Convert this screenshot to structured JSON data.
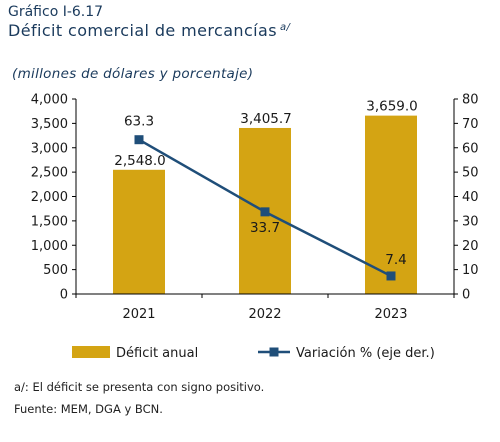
{
  "header": {
    "figure_label": "Gráfico I-6.17",
    "title": "Déficit comercial de mercancías",
    "title_note": "a/",
    "subtitle": "(millones de dólares y porcentaje)"
  },
  "colors": {
    "bar": "#D4A413",
    "line": "#1F4E79",
    "axis": "#000000"
  },
  "chart_data": {
    "type": "bar+line",
    "categories": [
      "2021",
      "2022",
      "2023"
    ],
    "series": [
      {
        "name": "Déficit anual",
        "type": "bar",
        "axis": "left",
        "values": [
          2548.0,
          3405.7,
          3659.0
        ],
        "labels": [
          "2,548.0",
          "3,405.7",
          "3,659.0"
        ]
      },
      {
        "name": "Variación % (eje der.)",
        "type": "line",
        "axis": "right",
        "values": [
          63.3,
          33.7,
          7.4
        ],
        "labels": [
          "63.3",
          "33.7",
          "7.4"
        ]
      }
    ],
    "y_left": {
      "min": 0,
      "max": 4000,
      "step": 500,
      "tick_labels": [
        "0",
        "500",
        "1,000",
        "1,500",
        "2,000",
        "2,500",
        "3,000",
        "3,500",
        "4,000"
      ]
    },
    "y_right": {
      "min": 0,
      "max": 80,
      "step": 10,
      "tick_labels": [
        "0",
        "10",
        "20",
        "30",
        "40",
        "50",
        "60",
        "70",
        "80"
      ]
    },
    "grid": false,
    "legend_position": "bottom"
  },
  "notes": {
    "footnote": "a/: El déficit se presenta con signo positivo.",
    "source": "Fuente: MEM, DGA y BCN."
  }
}
